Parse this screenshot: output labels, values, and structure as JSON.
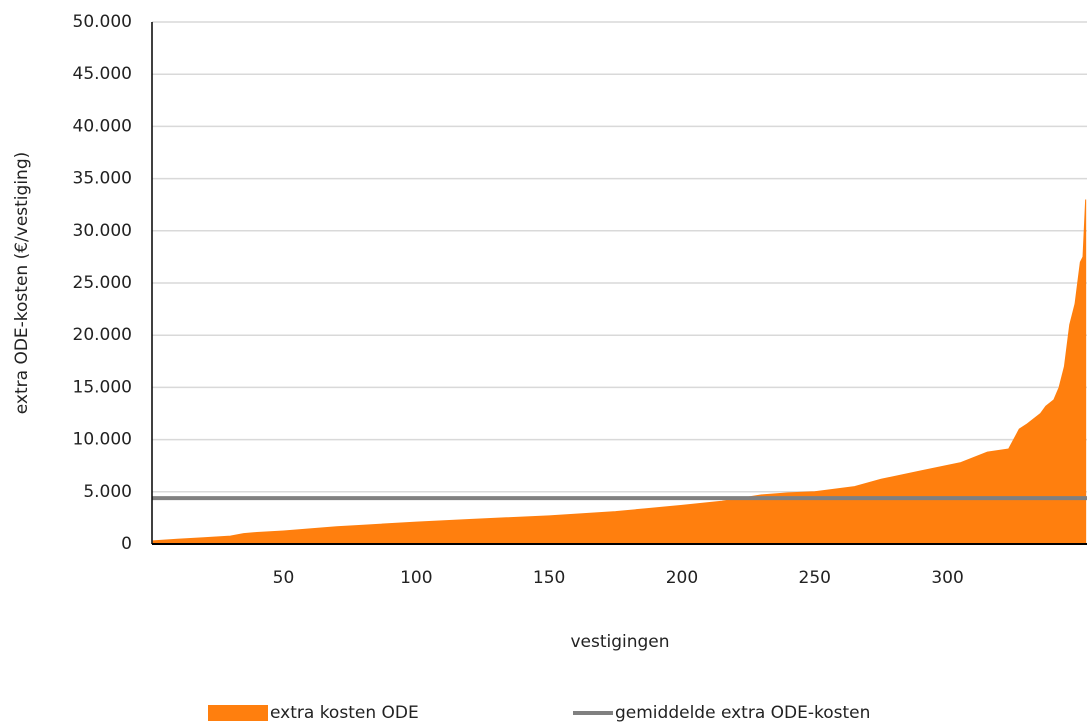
{
  "chart_data": {
    "type": "area",
    "y_axis_label": "extra ODE-kosten (€/vestiging)",
    "x_axis_label": "vestigingen",
    "xlim": [
      0.5,
      352.5
    ],
    "xticks": [
      50,
      100,
      150,
      200,
      250,
      300
    ],
    "ylim": [
      0,
      50000
    ],
    "yticks": [
      0,
      {
        "value": 5000,
        "label": "5.000"
      },
      {
        "value": 10000,
        "label": "10.000"
      },
      {
        "value": 15000,
        "label": "15.000"
      },
      {
        "value": 20000,
        "label": "20.000"
      },
      {
        "value": 25000,
        "label": "25.000"
      },
      {
        "value": 30000,
        "label": "30.000"
      },
      {
        "value": 35000,
        "label": "35.000"
      },
      {
        "value": 40000,
        "label": "40.000"
      },
      {
        "value": 45000,
        "label": "45.000"
      },
      {
        "value": 50000,
        "label": "50.000"
      }
    ],
    "grid": true,
    "legend": "bottom",
    "series": [
      {
        "name": "extra kosten ODE",
        "type": "area",
        "color": "#ff7f0e",
        "x": [
          1,
          10,
          20,
          30,
          35,
          40,
          50,
          60,
          70,
          80,
          100,
          120,
          150,
          175,
          200,
          215,
          230,
          240,
          250,
          265,
          275,
          290,
          305,
          315,
          323,
          327,
          330,
          335,
          337,
          340,
          342,
          344,
          346,
          348,
          349,
          350,
          351,
          352
        ],
        "values": [
          300,
          450,
          600,
          750,
          1000,
          1100,
          1250,
          1450,
          1650,
          1800,
          2100,
          2350,
          2700,
          3100,
          3700,
          4100,
          4700,
          4900,
          5000,
          5500,
          6200,
          7000,
          7800,
          8800,
          9100,
          11000,
          11500,
          12500,
          13200,
          13800,
          15000,
          17000,
          21000,
          23000,
          25000,
          27000,
          27500,
          33000
        ]
      },
      {
        "name": "gemiddelde extra ODE-kosten",
        "type": "hline",
        "color": "#808080",
        "values": [
          4400
        ]
      }
    ]
  }
}
